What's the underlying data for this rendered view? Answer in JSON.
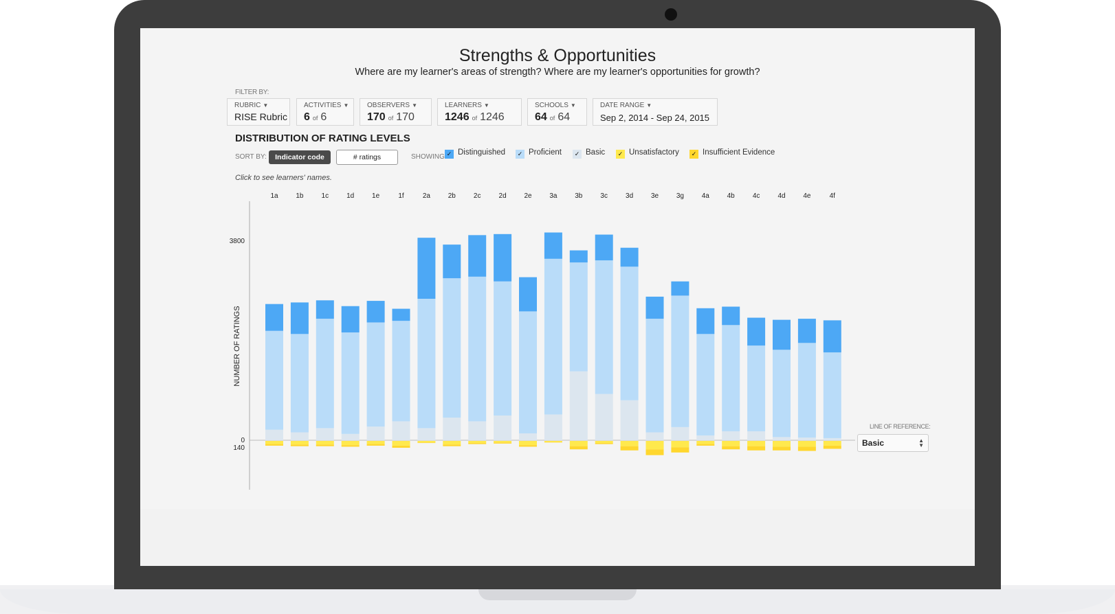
{
  "page": {
    "title": "Strengths & Opportunities",
    "subtitle": "Where are my learner's areas of strength? Where are my learner's opportunities for growth?"
  },
  "filters": {
    "label": "FILTER BY:",
    "rubric": {
      "label": "RUBRIC",
      "value": "RISE Rubric"
    },
    "activities": {
      "label": "ACTIVITIES",
      "selected": "6",
      "of": "of",
      "total": "6"
    },
    "observers": {
      "label": "OBSERVERS",
      "selected": "170",
      "of": "of",
      "total": "170"
    },
    "learners": {
      "label": "LEARNERS",
      "selected": "1246",
      "of": "of",
      "total": "1246"
    },
    "schools": {
      "label": "SCHOOLS",
      "selected": "64",
      "of": "of",
      "total": "64"
    },
    "date_range": {
      "label": "DATE RANGE",
      "value": "Sep 2, 2014 - Sep 24, 2015"
    }
  },
  "distribution": {
    "title": "DISTRIBUTION OF RATING LEVELS",
    "sort_label": "SORT BY:",
    "sort_options": [
      "Indicator code",
      "# ratings"
    ],
    "sort_selected": "Indicator code",
    "showing_label": "SHOWING:",
    "legend": [
      {
        "name": "Distinguished",
        "color": "#4da8f5",
        "checked": true
      },
      {
        "name": "Proficient",
        "color": "#b9dcf9",
        "checked": true
      },
      {
        "name": "Basic",
        "color": "#dce6ef",
        "checked": true
      },
      {
        "name": "Unsatisfactory",
        "color": "#ffe94d",
        "checked": true
      },
      {
        "name": "Insufficient Evidence",
        "color": "#ffd72e",
        "checked": true
      }
    ],
    "hint": "Click to see learners' names.",
    "line_of_reference": {
      "label": "LINE OF REFERENCE:",
      "value": "Basic"
    }
  },
  "chart_data": {
    "type": "bar",
    "stacked": true,
    "ylabel": "NUMBER OF RATINGS",
    "y_ticks": [
      3800,
      0,
      140
    ],
    "categories": [
      "1a",
      "1b",
      "1c",
      "1d",
      "1e",
      "1f",
      "2a",
      "2b",
      "2c",
      "2d",
      "2e",
      "3a",
      "3b",
      "3c",
      "3d",
      "3e",
      "3g",
      "4a",
      "4b",
      "4c",
      "4d",
      "4e",
      "4f"
    ],
    "series": [
      {
        "name": "Basic",
        "color": "#dce6ef",
        "values": [
          200,
          150,
          230,
          120,
          260,
          360,
          230,
          430,
          360,
          470,
          130,
          490,
          1310,
          880,
          760,
          150,
          250,
          90,
          170,
          170,
          60,
          50,
          40
        ]
      },
      {
        "name": "Proficient",
        "color": "#b9dcf9",
        "values": [
          1880,
          1870,
          2080,
          1930,
          1980,
          1910,
          2460,
          2650,
          2750,
          2550,
          2320,
          2960,
          2070,
          2540,
          2540,
          2160,
          2500,
          1930,
          2020,
          1630,
          1660,
          1800,
          1630
        ]
      },
      {
        "name": "Distinguished",
        "color": "#4da8f5",
        "values": [
          510,
          600,
          350,
          500,
          410,
          230,
          1160,
          640,
          790,
          900,
          650,
          500,
          230,
          490,
          360,
          420,
          270,
          490,
          350,
          530,
          570,
          460,
          610
        ]
      },
      {
        "name": "Unsatisfactory",
        "color": "#ffe94d",
        "values": [
          60,
          70,
          70,
          80,
          60,
          90,
          30,
          70,
          40,
          30,
          80,
          20,
          100,
          40,
          100,
          160,
          120,
          60,
          100,
          100,
          110,
          110,
          90
        ]
      },
      {
        "name": "Insufficient Evidence",
        "color": "#ffd72e",
        "values": [
          30,
          30,
          30,
          30,
          30,
          40,
          10,
          30,
          20,
          20,
          30,
          10,
          60,
          20,
          80,
          110,
          100,
          30,
          60,
          80,
          70,
          80,
          60
        ]
      }
    ]
  }
}
